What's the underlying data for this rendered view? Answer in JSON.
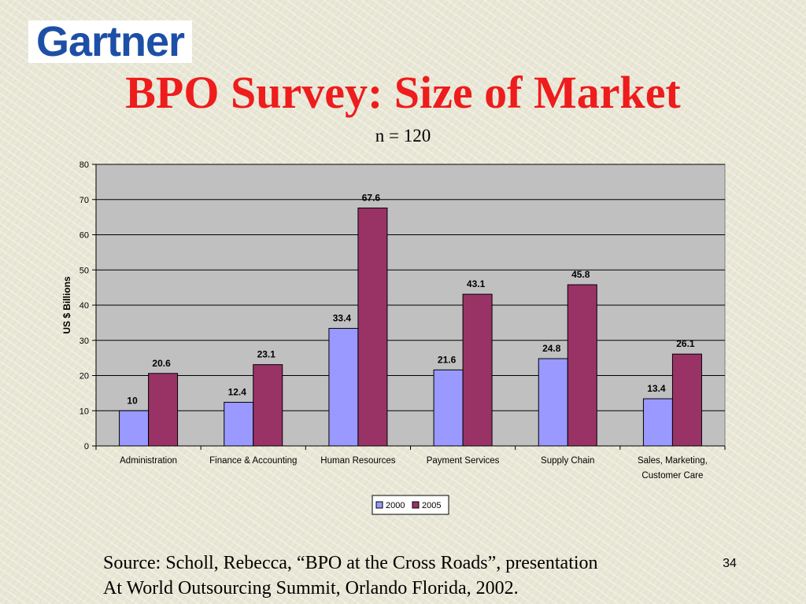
{
  "logo": {
    "text": "Gartner"
  },
  "slide": {
    "title": "BPO Survey: Size of Market",
    "subtitle": "n = 120",
    "source_line1": "Source: Scholl, Rebecca, “BPO at the Cross Roads”, presentation",
    "source_line2": "At World Outsourcing Summit, Orlando Florida, 2002.",
    "page_number": "34"
  },
  "colors": {
    "title": "#ee1c1c",
    "logo": "#1d4fa6",
    "series_2000": "#9999ff",
    "series_2005": "#993366",
    "plot_background": "#c0c0c0"
  },
  "chart_data": {
    "type": "bar",
    "title": "",
    "xlabel": "",
    "ylabel": "US $ Billions",
    "ylim": [
      0,
      80
    ],
    "yticks": [
      0,
      10,
      20,
      30,
      40,
      50,
      60,
      70,
      80
    ],
    "grid": true,
    "legend_position": "bottom",
    "categories": [
      [
        "Administration"
      ],
      [
        "Finance & Accounting"
      ],
      [
        "Human Resources"
      ],
      [
        "Payment Services"
      ],
      [
        "Supply Chain"
      ],
      [
        "Sales, Marketing,",
        "Customer Care"
      ]
    ],
    "series": [
      {
        "name": "2000",
        "color": "#9999ff",
        "values": [
          10,
          12.4,
          33.4,
          21.6,
          24.8,
          13.4
        ]
      },
      {
        "name": "2005",
        "color": "#993366",
        "values": [
          20.6,
          23.1,
          67.6,
          43.1,
          45.8,
          26.1
        ]
      }
    ]
  }
}
